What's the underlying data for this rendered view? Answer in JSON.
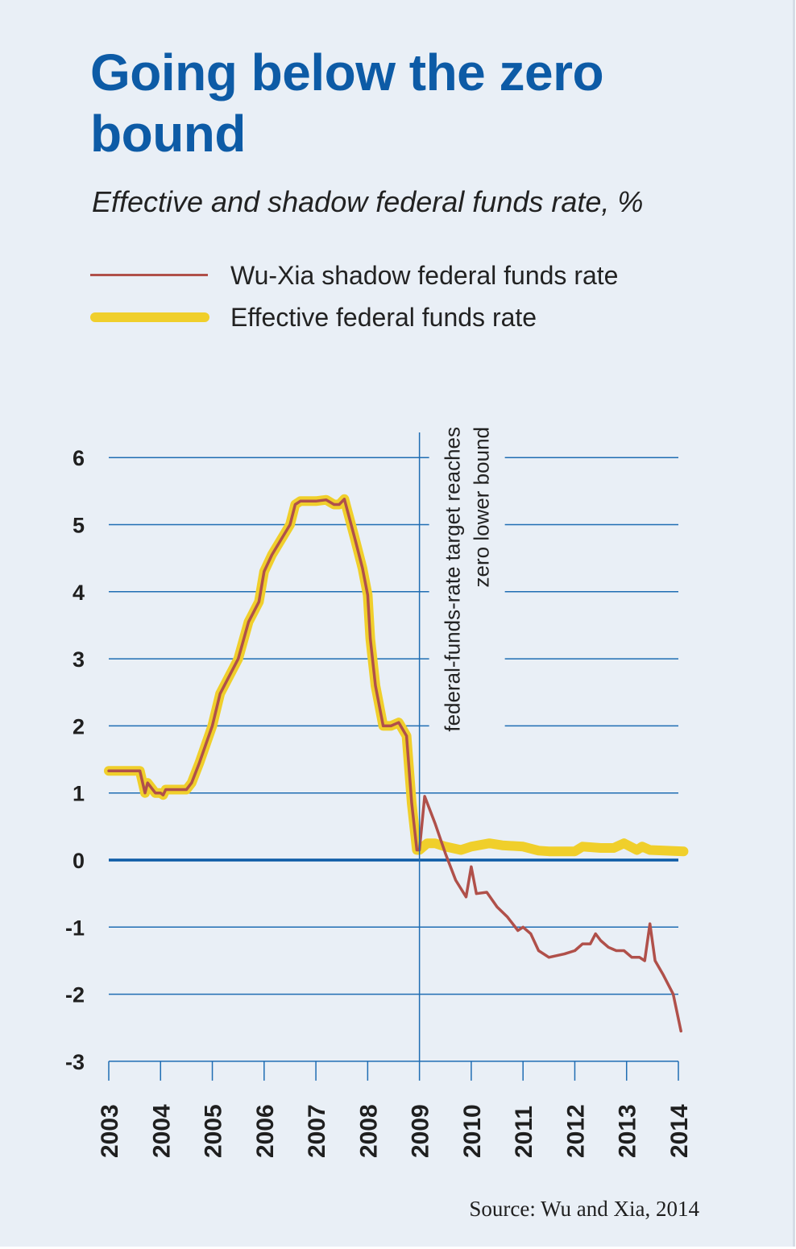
{
  "title": "Going below the zero bound",
  "subtitle": "Effective and shadow federal funds rate, %",
  "legend": [
    {
      "label": "Wu-Xia shadow federal funds rate",
      "color": "#b0504a"
    },
    {
      "label": "Effective federal funds rate",
      "color": "#f0cf2b"
    }
  ],
  "source": "Source: Wu and Xia, 2014",
  "chart_data": {
    "type": "line",
    "title": "Going below the zero bound",
    "subtitle": "Effective and shadow federal funds rate, %",
    "xlim": [
      2003,
      2014
    ],
    "ylim": [
      -3,
      6
    ],
    "x_ticks": [
      "2003",
      "2004",
      "2005",
      "2006",
      "2007",
      "2008",
      "2009",
      "2010",
      "2011",
      "2012",
      "2013",
      "2014"
    ],
    "y_ticks": [
      "6",
      "5",
      "4",
      "3",
      "2",
      "1",
      "0",
      "-1",
      "-2",
      "-3"
    ],
    "y_tick_values": [
      6,
      5,
      4,
      3,
      2,
      1,
      0,
      -1,
      -2,
      -3
    ],
    "grid": true,
    "legend_position": "top",
    "annotation": {
      "x": 2009,
      "lines": [
        "federal-funds-rate target reaches",
        "zero lower bound"
      ]
    },
    "series": [
      {
        "name": "Effective federal funds rate",
        "color": "#f0cf2b",
        "x": [
          2003.0,
          2003.5,
          2003.6,
          2003.7,
          2003.75,
          2003.9,
          2004.0,
          2004.05,
          2004.1,
          2004.5,
          2004.6,
          2004.75,
          2005.0,
          2005.15,
          2005.5,
          2005.7,
          2005.9,
          2006.0,
          2006.15,
          2006.5,
          2006.6,
          2006.7,
          2007.0,
          2007.2,
          2007.35,
          2007.45,
          2007.55,
          2007.75,
          2007.9,
          2008.0,
          2008.05,
          2008.15,
          2008.3,
          2008.45,
          2008.6,
          2008.75,
          2008.85,
          2008.95,
          2009.0,
          2009.15,
          2009.3,
          2009.5,
          2009.8,
          2010.0,
          2010.35,
          2010.6,
          2011.0,
          2011.3,
          2011.5,
          2011.75,
          2012.0,
          2012.15,
          2012.5,
          2012.75,
          2012.95,
          2013.2,
          2013.3,
          2013.45,
          2014.1
        ],
        "values": [
          1.33,
          1.33,
          1.33,
          1.0,
          1.15,
          1.0,
          1.0,
          0.97,
          1.05,
          1.05,
          1.15,
          1.45,
          2.0,
          2.48,
          3.0,
          3.55,
          3.85,
          4.3,
          4.55,
          5.0,
          5.3,
          5.35,
          5.35,
          5.37,
          5.3,
          5.3,
          5.38,
          4.8,
          4.35,
          3.95,
          3.3,
          2.6,
          2.0,
          2.0,
          2.05,
          1.85,
          0.85,
          0.15,
          0.15,
          0.25,
          0.25,
          0.2,
          0.15,
          0.2,
          0.25,
          0.22,
          0.2,
          0.14,
          0.13,
          0.13,
          0.13,
          0.2,
          0.18,
          0.18,
          0.25,
          0.15,
          0.2,
          0.15,
          0.13
        ]
      },
      {
        "name": "Wu-Xia shadow federal funds rate",
        "color": "#b0504a",
        "x": [
          2003.0,
          2003.5,
          2003.6,
          2003.7,
          2003.75,
          2003.9,
          2004.0,
          2004.05,
          2004.1,
          2004.5,
          2004.6,
          2004.75,
          2005.0,
          2005.15,
          2005.5,
          2005.7,
          2005.9,
          2006.0,
          2006.15,
          2006.5,
          2006.6,
          2006.7,
          2007.0,
          2007.2,
          2007.35,
          2007.45,
          2007.55,
          2007.75,
          2007.9,
          2008.0,
          2008.05,
          2008.15,
          2008.3,
          2008.45,
          2008.6,
          2008.75,
          2008.85,
          2008.95,
          2009.0,
          2009.1,
          2009.3,
          2009.5,
          2009.7,
          2009.9,
          2010.0,
          2010.1,
          2010.3,
          2010.5,
          2010.7,
          2010.9,
          2011.0,
          2011.15,
          2011.3,
          2011.5,
          2011.8,
          2012.0,
          2012.15,
          2012.3,
          2012.4,
          2012.5,
          2012.65,
          2012.8,
          2012.95,
          2013.1,
          2013.25,
          2013.35,
          2013.45,
          2013.55,
          2013.7,
          2013.9,
          2014.05
        ],
        "values": [
          1.33,
          1.33,
          1.33,
          1.0,
          1.15,
          1.0,
          1.0,
          0.97,
          1.05,
          1.05,
          1.15,
          1.45,
          2.0,
          2.48,
          3.0,
          3.55,
          3.85,
          4.3,
          4.55,
          5.0,
          5.3,
          5.35,
          5.35,
          5.37,
          5.3,
          5.3,
          5.38,
          4.8,
          4.35,
          3.95,
          3.3,
          2.6,
          2.0,
          2.0,
          2.05,
          1.85,
          0.85,
          0.15,
          0.15,
          0.95,
          0.55,
          0.1,
          -0.3,
          -0.55,
          -0.1,
          -0.5,
          -0.48,
          -0.7,
          -0.85,
          -1.05,
          -1.0,
          -1.1,
          -1.35,
          -1.45,
          -1.4,
          -1.35,
          -1.25,
          -1.25,
          -1.1,
          -1.2,
          -1.3,
          -1.35,
          -1.35,
          -1.45,
          -1.45,
          -1.5,
          -0.95,
          -1.5,
          -1.7,
          -2.0,
          -2.55
        ]
      }
    ]
  }
}
